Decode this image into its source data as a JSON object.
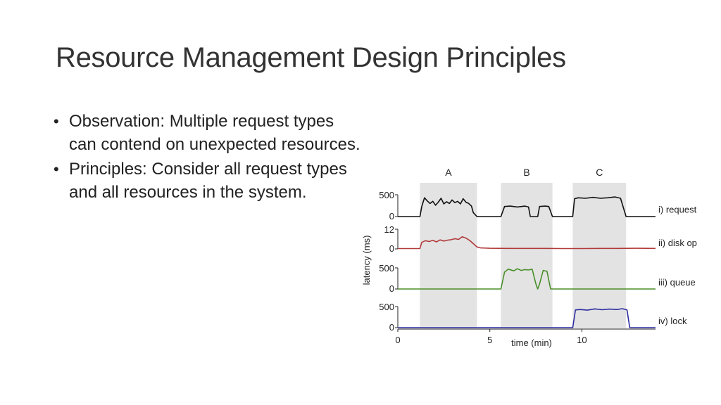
{
  "slide": {
    "title": "Resource Management Design Principles",
    "bullets": [
      "Observation: Multiple request types can contend on unexpected resources.",
      "Principles: Consider all request types and all resources in the system."
    ]
  },
  "chart_data": {
    "type": "line",
    "xlabel": "time (min)",
    "ylabel": "latency (ms)",
    "xlim": [
      0,
      14
    ],
    "x_ticks": [
      "0",
      "5",
      "10"
    ],
    "phases": [
      {
        "label": "A",
        "start": 1.2,
        "end": 4.3
      },
      {
        "label": "B",
        "start": 5.6,
        "end": 8.4
      },
      {
        "label": "C",
        "start": 9.5,
        "end": 12.4
      }
    ],
    "shade_color": "#e3e3e3",
    "series": [
      {
        "name": "i) request",
        "color": "#111111",
        "yticks": [
          "500",
          "0"
        ],
        "ymax": 500,
        "x": [
          0,
          1.2,
          1.3,
          1.45,
          1.6,
          1.75,
          1.9,
          2.05,
          2.2,
          2.35,
          2.5,
          2.65,
          2.8,
          2.95,
          3.1,
          3.25,
          3.4,
          3.55,
          3.7,
          3.85,
          4.0,
          4.1,
          4.3,
          5.6,
          5.8,
          6.1,
          6.5,
          6.9,
          7.1,
          7.2,
          7.6,
          7.7,
          8.0,
          8.2,
          8.4,
          9.5,
          9.6,
          9.8,
          10.2,
          10.6,
          11.0,
          11.4,
          11.8,
          12.1,
          12.4,
          14.0
        ],
        "y": [
          0,
          0,
          230,
          430,
          360,
          300,
          350,
          260,
          330,
          420,
          290,
          340,
          300,
          380,
          320,
          350,
          290,
          410,
          330,
          300,
          240,
          90,
          0,
          0,
          230,
          240,
          220,
          240,
          220,
          0,
          0,
          230,
          240,
          230,
          0,
          0,
          410,
          430,
          420,
          440,
          420,
          430,
          450,
          420,
          0,
          0
        ]
      },
      {
        "name": "ii) disk op",
        "color": "#b23a3a",
        "yticks": [
          "12",
          "0"
        ],
        "ymax": 12,
        "x": [
          0,
          1.2,
          1.3,
          1.5,
          1.7,
          1.9,
          2.1,
          2.3,
          2.5,
          2.7,
          2.9,
          3.1,
          3.3,
          3.5,
          3.7,
          3.9,
          4.1,
          4.3,
          4.5,
          5,
          6,
          7,
          8,
          9,
          10,
          11,
          12,
          13,
          14
        ],
        "y": [
          0.2,
          0.2,
          4,
          5,
          4.5,
          5.2,
          4.3,
          5.5,
          4.8,
          5.3,
          5.6,
          6.2,
          5.8,
          7.4,
          6.6,
          5.2,
          3.2,
          1.2,
          0.6,
          0.4,
          0.3,
          0.3,
          0.3,
          0.2,
          0.2,
          0.3,
          0.3,
          0.4,
          0.3
        ]
      },
      {
        "name": "iii) queue",
        "color": "#4a8f2a",
        "yticks": [
          "500",
          "0"
        ],
        "ymax": 500,
        "x": [
          0,
          5.6,
          5.8,
          6.0,
          6.3,
          6.5,
          6.7,
          6.9,
          7.1,
          7.3,
          7.5,
          7.6,
          7.7,
          7.9,
          8.1,
          8.3,
          8.5,
          14.0
        ],
        "y": [
          0,
          0,
          400,
          470,
          430,
          480,
          440,
          460,
          450,
          470,
          120,
          0,
          120,
          440,
          420,
          0,
          0,
          0
        ]
      },
      {
        "name": "iv) lock",
        "color": "#2c2ca0",
        "yticks": [
          "500",
          "0"
        ],
        "ymax": 500,
        "x": [
          0,
          9.5,
          9.65,
          9.9,
          10.3,
          10.7,
          11.1,
          11.5,
          11.9,
          12.2,
          12.45,
          12.6,
          14.0
        ],
        "y": [
          0,
          0,
          420,
          430,
          415,
          445,
          425,
          440,
          430,
          450,
          420,
          0,
          0
        ]
      }
    ]
  }
}
